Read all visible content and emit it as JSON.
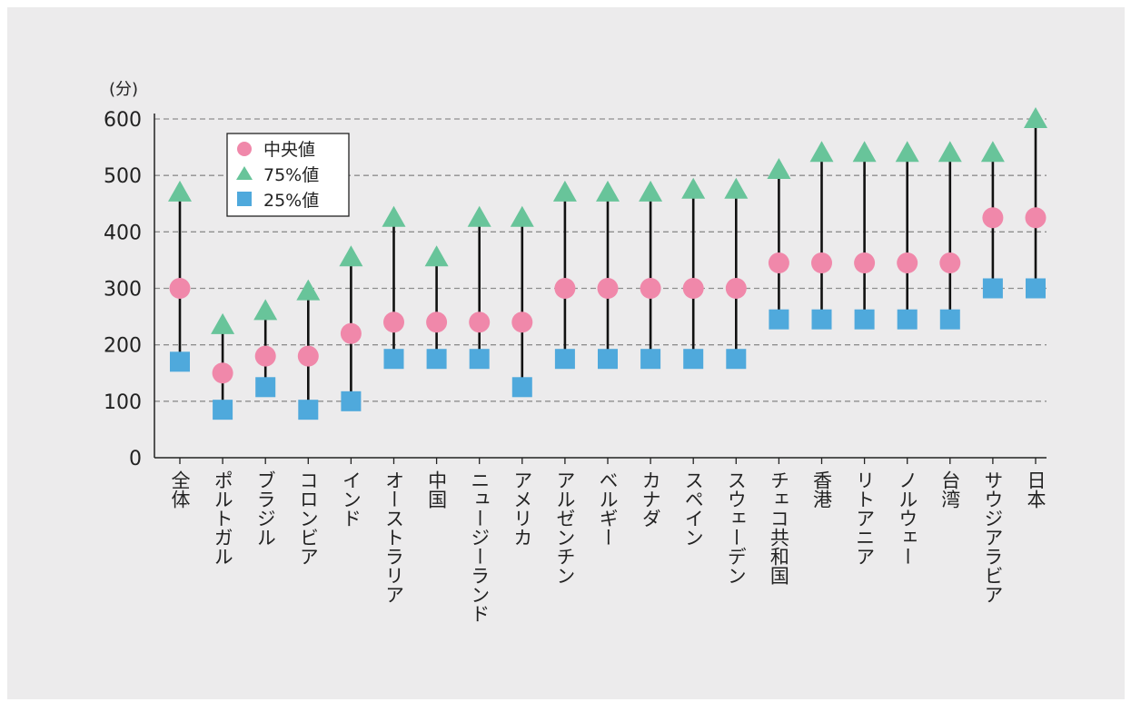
{
  "chart_data": {
    "type": "scatter",
    "y_unit": "(分)",
    "ylim": [
      0,
      600
    ],
    "yticks": [
      0,
      100,
      200,
      300,
      400,
      500,
      600
    ],
    "grid": true,
    "legend_position": "top-left",
    "categories": [
      "全体",
      "ポルトガル",
      "ブラジル",
      "コロンビア",
      "インド",
      "オーストラリア",
      "中国",
      "ニュージーランド",
      "アメリカ",
      "アルゼンチン",
      "ベルギー",
      "カナダ",
      "スペイン",
      "スウェーデン",
      "チェコ共和国",
      "香港",
      "リトアニア",
      "ノルウェー",
      "台湾",
      "サウジアラビア",
      "日本"
    ],
    "series": [
      {
        "name": "中央値",
        "marker": "circle",
        "color": "#f088aa",
        "values": [
          300,
          150,
          180,
          180,
          220,
          240,
          240,
          240,
          240,
          300,
          300,
          300,
          300,
          300,
          345,
          345,
          345,
          345,
          345,
          425,
          425
        ]
      },
      {
        "name": "75%値",
        "marker": "triangle",
        "color": "#68c49a",
        "values": [
          470,
          235,
          260,
          295,
          355,
          425,
          355,
          425,
          425,
          470,
          470,
          470,
          475,
          475,
          510,
          540,
          540,
          540,
          540,
          540,
          600
        ]
      },
      {
        "name": "25%値",
        "marker": "square",
        "color": "#4fa9dc",
        "values": [
          170,
          85,
          125,
          85,
          100,
          175,
          175,
          175,
          125,
          175,
          175,
          175,
          175,
          175,
          245,
          245,
          245,
          245,
          245,
          300,
          300
        ]
      }
    ]
  }
}
